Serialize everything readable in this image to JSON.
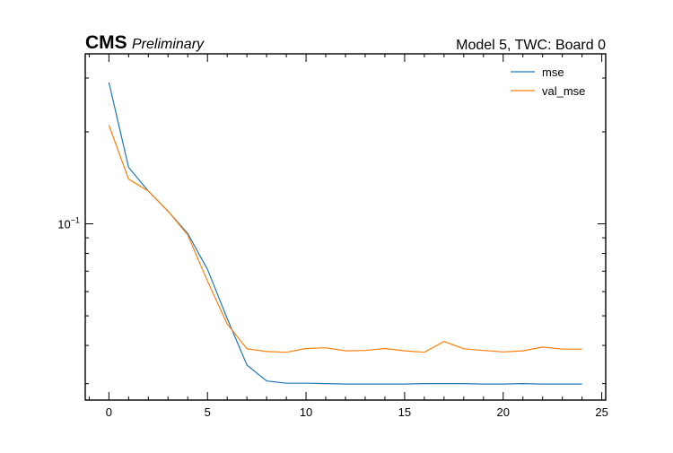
{
  "header": {
    "experiment": "CMS",
    "status": "Preliminary",
    "right_label": "Model 5, TWC: Board 0"
  },
  "chart_data": {
    "type": "line",
    "title": "",
    "xlabel": "",
    "ylabel": "",
    "x_scale": "linear",
    "y_scale": "log",
    "xlim": [
      -1.2,
      25.2
    ],
    "ylim": [
      0.0265,
      0.36
    ],
    "x_ticks": [
      0,
      5,
      10,
      15,
      20,
      25
    ],
    "y_tick_labels": [
      {
        "value": 0.1,
        "base": "10",
        "exp": "−1"
      }
    ],
    "grid": false,
    "legend_position": "top-right",
    "x": [
      0,
      1,
      2,
      3,
      4,
      5,
      6,
      7,
      8,
      9,
      10,
      11,
      12,
      13,
      14,
      15,
      16,
      17,
      18,
      19,
      20,
      21,
      22,
      23,
      24
    ],
    "series": [
      {
        "name": "mse",
        "color": "#1f77b4",
        "values": [
          0.29,
          0.153,
          0.128,
          0.11,
          0.093,
          0.071,
          0.049,
          0.0345,
          0.0306,
          0.0301,
          0.0301,
          0.03,
          0.0299,
          0.0299,
          0.0299,
          0.0299,
          0.03,
          0.03,
          0.03,
          0.0299,
          0.0299,
          0.03,
          0.0299,
          0.0299,
          0.0299
        ]
      },
      {
        "name": "val_mse",
        "color": "#ff7f0e",
        "values": [
          0.21,
          0.14,
          0.128,
          0.11,
          0.092,
          0.065,
          0.047,
          0.039,
          0.0382,
          0.038,
          0.0391,
          0.0393,
          0.0384,
          0.0385,
          0.0391,
          0.0384,
          0.038,
          0.0412,
          0.039,
          0.0385,
          0.0381,
          0.0384,
          0.0395,
          0.0389,
          0.0389
        ]
      }
    ]
  }
}
